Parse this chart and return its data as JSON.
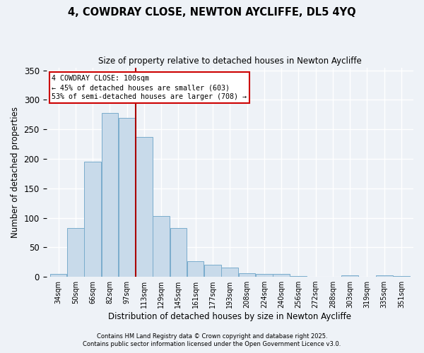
{
  "title": "4, COWDRAY CLOSE, NEWTON AYCLIFFE, DL5 4YQ",
  "subtitle": "Size of property relative to detached houses in Newton Aycliffe",
  "xlabel": "Distribution of detached houses by size in Newton Aycliffe",
  "ylabel": "Number of detached properties",
  "bar_color": "#c8daea",
  "bar_edgecolor": "#7aaccc",
  "background_color": "#eef2f7",
  "grid_color": "#ffffff",
  "vline_color": "#aa0000",
  "categories": [
    "34sqm",
    "50sqm",
    "66sqm",
    "82sqm",
    "97sqm",
    "113sqm",
    "129sqm",
    "145sqm",
    "161sqm",
    "177sqm",
    "193sqm",
    "208sqm",
    "224sqm",
    "240sqm",
    "256sqm",
    "272sqm",
    "288sqm",
    "303sqm",
    "319sqm",
    "335sqm",
    "351sqm"
  ],
  "bar_heights": [
    5,
    83,
    195,
    278,
    270,
    237,
    103,
    83,
    27,
    20,
    16,
    6,
    5,
    5,
    1,
    0,
    0,
    2,
    0,
    2,
    1
  ],
  "ylim": [
    0,
    355
  ],
  "yticks": [
    0,
    50,
    100,
    150,
    200,
    250,
    300,
    350
  ],
  "vline_bar_index": 4,
  "annotation_title": "4 COWDRAY CLOSE: 100sqm",
  "annotation_line1": "← 45% of detached houses are smaller (603)",
  "annotation_line2": "53% of semi-detached houses are larger (708) →",
  "annotation_box_facecolor": "#ffffff",
  "annotation_box_edgecolor": "#cc0000",
  "footer1": "Contains HM Land Registry data © Crown copyright and database right 2025.",
  "footer2": "Contains public sector information licensed under the Open Government Licence v3.0."
}
